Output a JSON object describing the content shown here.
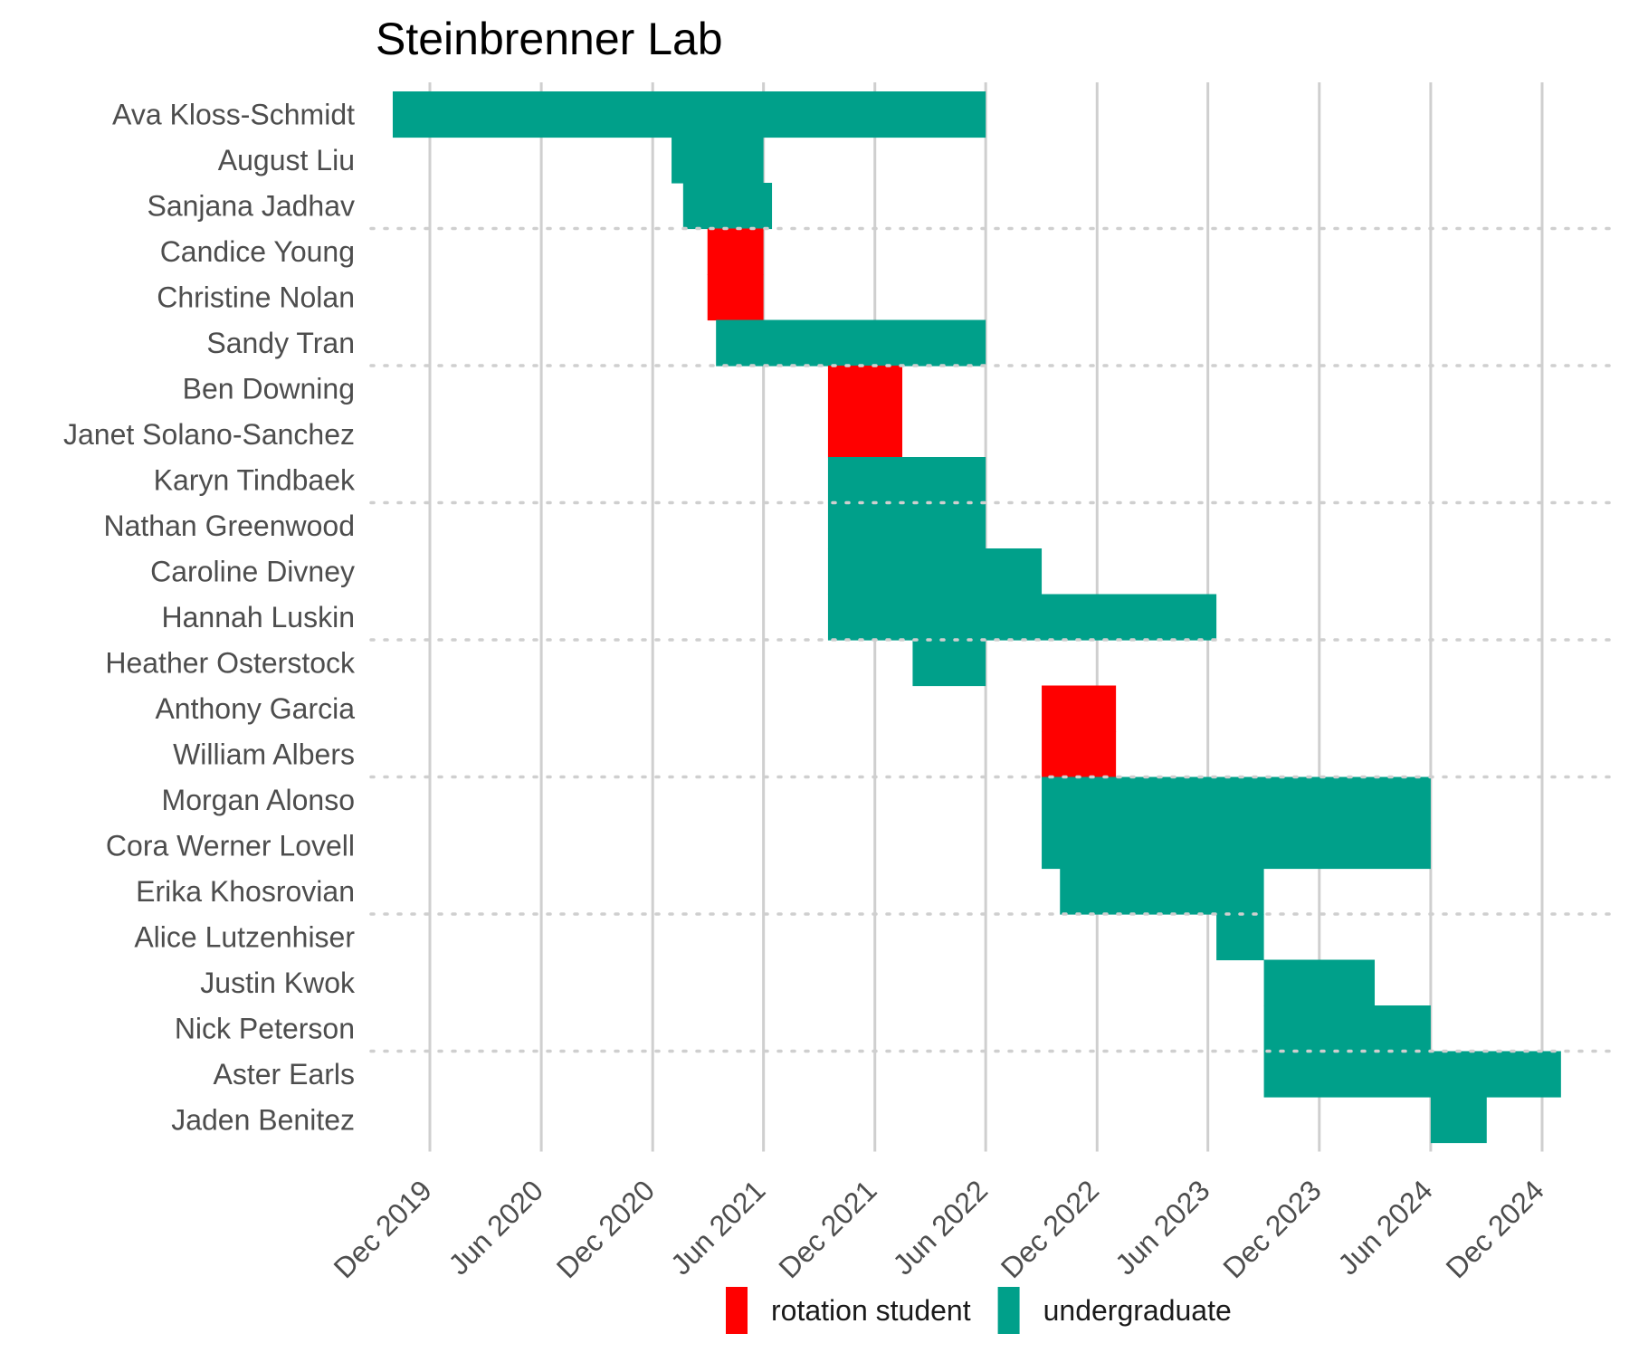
{
  "chart_data": {
    "type": "gantt",
    "title": "Steinbrenner Lab",
    "xlabel": "",
    "ylabel": "",
    "x_ticks": [
      "Dec 2019",
      "Jun 2020",
      "Dec 2020",
      "Jun 2021",
      "Dec 2021",
      "Jun 2022",
      "Dec 2022",
      "Jun 2023",
      "Dec 2023",
      "Jun 2024",
      "Dec 2024"
    ],
    "xlim": [
      "2019-09-01",
      "2025-03-01"
    ],
    "grid": "vertical major gridlines",
    "legend_position": "bottom",
    "legend": [
      {
        "name": "rotation student",
        "color": "#ff0000"
      },
      {
        "name": "undergraduate",
        "color": "#00a08a"
      }
    ],
    "group_separator_after_rows": [
      3,
      6,
      9,
      12,
      15,
      18,
      21
    ],
    "rows": [
      {
        "name": "Ava Kloss-Schmidt",
        "role": "undergraduate",
        "start": "2019-10-01",
        "end": "2022-06-01"
      },
      {
        "name": "August Liu",
        "role": "undergraduate",
        "start": "2021-01-01",
        "end": "2021-06-01"
      },
      {
        "name": "Sanjana Jadhav",
        "role": "undergraduate",
        "start": "2021-01-20",
        "end": "2021-06-15"
      },
      {
        "name": "Candice Young",
        "role": "rotation student",
        "start": "2021-03-01",
        "end": "2021-06-01"
      },
      {
        "name": "Christine Nolan",
        "role": "rotation student",
        "start": "2021-03-01",
        "end": "2021-06-01"
      },
      {
        "name": "Sandy Tran",
        "role": "undergraduate",
        "start": "2021-03-15",
        "end": "2022-06-01"
      },
      {
        "name": "Ben Downing",
        "role": "rotation student",
        "start": "2021-09-15",
        "end": "2022-01-15"
      },
      {
        "name": "Janet Solano-Sanchez",
        "role": "rotation student",
        "start": "2021-09-15",
        "end": "2022-01-15"
      },
      {
        "name": "Karyn Tindbaek",
        "role": "undergraduate",
        "start": "2021-09-15",
        "end": "2022-06-01"
      },
      {
        "name": "Nathan Greenwood",
        "role": "undergraduate",
        "start": "2021-09-15",
        "end": "2022-06-01"
      },
      {
        "name": "Caroline Divney",
        "role": "undergraduate",
        "start": "2021-09-15",
        "end": "2022-09-01"
      },
      {
        "name": "Hannah Luskin",
        "role": "undergraduate",
        "start": "2021-09-15",
        "end": "2023-06-15"
      },
      {
        "name": "Heather Osterstock",
        "role": "undergraduate",
        "start": "2022-02-01",
        "end": "2022-06-01"
      },
      {
        "name": "Anthony Garcia",
        "role": "rotation student",
        "start": "2022-09-01",
        "end": "2023-01-01"
      },
      {
        "name": "William Albers",
        "role": "rotation student",
        "start": "2022-09-01",
        "end": "2023-01-01"
      },
      {
        "name": "Morgan Alonso",
        "role": "undergraduate",
        "start": "2022-09-01",
        "end": "2024-06-01"
      },
      {
        "name": "Cora Werner Lovell",
        "role": "undergraduate",
        "start": "2022-09-01",
        "end": "2024-06-01"
      },
      {
        "name": "Erika Khosrovian",
        "role": "undergraduate",
        "start": "2022-10-01",
        "end": "2023-09-01"
      },
      {
        "name": "Alice Lutzenhiser",
        "role": "undergraduate",
        "start": "2023-06-15",
        "end": "2023-09-01"
      },
      {
        "name": "Justin Kwok",
        "role": "undergraduate",
        "start": "2023-09-01",
        "end": "2024-03-01"
      },
      {
        "name": "Nick Peterson",
        "role": "undergraduate",
        "start": "2023-09-01",
        "end": "2024-06-01"
      },
      {
        "name": "Aster Earls",
        "role": "undergraduate",
        "start": "2023-09-01",
        "end": "2025-01-01"
      },
      {
        "name": "Jaden Benitez",
        "role": "undergraduate",
        "start": "2024-06-01",
        "end": "2024-09-01"
      }
    ]
  }
}
